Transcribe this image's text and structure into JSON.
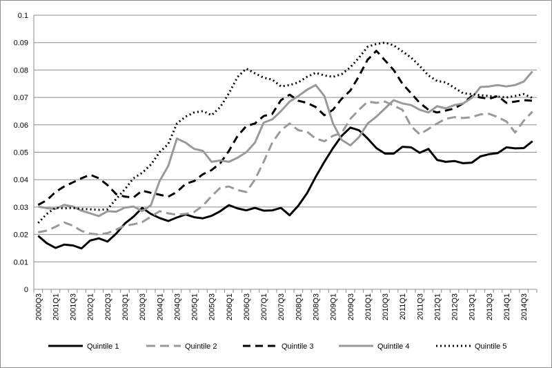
{
  "chart_data": {
    "type": "line",
    "title": "",
    "xlabel": "",
    "ylabel": "",
    "ylim": [
      0,
      0.1
    ],
    "yticks": [
      "0",
      "0.01",
      "0.02",
      "0.03",
      "0.04",
      "0.05",
      "0.06",
      "0.07",
      "0.08",
      "0.09",
      "0.1"
    ],
    "grid": "horizontal",
    "legend_position": "bottom",
    "x": [
      "2000Q3",
      "2000Q4",
      "2001Q1",
      "2001Q2",
      "2001Q3",
      "2001Q4",
      "2002Q1",
      "2002Q2",
      "2002Q3",
      "2002Q4",
      "2003Q1",
      "2003Q2",
      "2003Q3",
      "2003Q4",
      "2004Q1",
      "2004Q2",
      "2004Q3",
      "2004Q4",
      "2005Q1",
      "2005Q2",
      "2005Q3",
      "2005Q4",
      "2006Q1",
      "2006Q2",
      "2006Q3",
      "2006Q4",
      "2007Q1",
      "2007Q2",
      "2007Q3",
      "2007Q4",
      "2008Q1",
      "2008Q2",
      "2008Q3",
      "2008Q4",
      "2009Q1",
      "2009Q2",
      "2009Q3",
      "2009Q4",
      "2010Q1",
      "2010Q2",
      "2010Q3",
      "2010Q4",
      "2011Q1",
      "2011Q2",
      "2011Q3",
      "2011Q4",
      "2012Q1",
      "2012Q2",
      "2012Q3",
      "2012Q4",
      "2013Q1",
      "2013Q2",
      "2013Q3",
      "2013Q4",
      "2014Q1",
      "2014Q2",
      "2014Q3",
      "2014Q4"
    ],
    "x_tick_labels": [
      "2000Q3",
      "2001Q1",
      "2001Q3",
      "2002Q1",
      "2002Q3",
      "2003Q1",
      "2003Q3",
      "2004Q1",
      "2004Q3",
      "2005Q1",
      "2005Q3",
      "2006Q1",
      "2006Q3",
      "2007Q1",
      "2007Q3",
      "2008Q1",
      "2008Q3",
      "2009Q1",
      "2009Q3",
      "2010Q1",
      "2010Q3",
      "2011Q1",
      "2011Q3",
      "2012Q1",
      "2012Q3",
      "2013Q1",
      "2013Q3",
      "2014Q1",
      "2014Q3"
    ],
    "series": [
      {
        "name": "Quintile 1",
        "color": "#000000",
        "dash": "solid",
        "values": [
          0.0195,
          0.0168,
          0.0151,
          0.0163,
          0.016,
          0.0149,
          0.0178,
          0.0186,
          0.0174,
          0.0203,
          0.024,
          0.0265,
          0.0297,
          0.0275,
          0.026,
          0.0249,
          0.0262,
          0.0273,
          0.0263,
          0.0259,
          0.0268,
          0.0285,
          0.0307,
          0.0295,
          0.0288,
          0.0297,
          0.0287,
          0.0288,
          0.0297,
          0.027,
          0.0305,
          0.035,
          0.041,
          0.0465,
          0.0515,
          0.056,
          0.059,
          0.058,
          0.055,
          0.0515,
          0.0495,
          0.0495,
          0.052,
          0.0518,
          0.0498,
          0.0512,
          0.0472,
          0.0465,
          0.0468,
          0.046,
          0.0462,
          0.0485,
          0.0493,
          0.0497,
          0.0518,
          0.0514,
          0.0515,
          0.054
        ]
      },
      {
        "name": "Quintile 2",
        "color": "#999999",
        "dash": "long-dash",
        "values": [
          0.0208,
          0.0214,
          0.0228,
          0.0244,
          0.0232,
          0.0213,
          0.0203,
          0.02,
          0.0205,
          0.0218,
          0.0232,
          0.0237,
          0.0245,
          0.0265,
          0.0285,
          0.0277,
          0.0272,
          0.0275,
          0.0282,
          0.0305,
          0.034,
          0.037,
          0.0375,
          0.0362,
          0.0355,
          0.04,
          0.0465,
          0.0535,
          0.058,
          0.0605,
          0.058,
          0.0575,
          0.055,
          0.054,
          0.056,
          0.057,
          0.0622,
          0.0655,
          0.0685,
          0.068,
          0.0685,
          0.067,
          0.0655,
          0.0595,
          0.0565,
          0.0585,
          0.0605,
          0.0622,
          0.0628,
          0.0625,
          0.0628,
          0.0638,
          0.064,
          0.0628,
          0.0612,
          0.0572,
          0.0615,
          0.0648
        ]
      },
      {
        "name": "Quintile 3",
        "color": "#000000",
        "dash": "dash",
        "values": [
          0.0308,
          0.0325,
          0.0355,
          0.0375,
          0.039,
          0.0405,
          0.0418,
          0.0405,
          0.038,
          0.0347,
          0.0338,
          0.0335,
          0.036,
          0.0352,
          0.0345,
          0.0338,
          0.0355,
          0.0385,
          0.0395,
          0.042,
          0.0435,
          0.046,
          0.0505,
          0.056,
          0.0595,
          0.0605,
          0.0632,
          0.064,
          0.069,
          0.071,
          0.0688,
          0.068,
          0.0665,
          0.0635,
          0.0655,
          0.0695,
          0.0725,
          0.0778,
          0.0838,
          0.087,
          0.0835,
          0.08,
          0.075,
          0.0715,
          0.068,
          0.0655,
          0.0645,
          0.0652,
          0.066,
          0.0678,
          0.0705,
          0.07,
          0.0695,
          0.0705,
          0.068,
          0.0685,
          0.069,
          0.0688
        ]
      },
      {
        "name": "Quintile 4",
        "color": "#999999",
        "dash": "solid",
        "values": [
          0.0302,
          0.0296,
          0.0293,
          0.0308,
          0.0302,
          0.0287,
          0.0277,
          0.0267,
          0.0285,
          0.0283,
          0.0298,
          0.0302,
          0.0285,
          0.0307,
          0.0395,
          0.045,
          0.055,
          0.0535,
          0.0512,
          0.0505,
          0.0465,
          0.047,
          0.0465,
          0.048,
          0.05,
          0.0535,
          0.0608,
          0.062,
          0.065,
          0.0685,
          0.0705,
          0.0728,
          0.0745,
          0.0705,
          0.0605,
          0.0545,
          0.0525,
          0.0555,
          0.0605,
          0.063,
          0.066,
          0.069,
          0.0678,
          0.0672,
          0.0655,
          0.0645,
          0.0668,
          0.066,
          0.0672,
          0.0678,
          0.0698,
          0.0738,
          0.074,
          0.0745,
          0.074,
          0.0745,
          0.0758,
          0.0795
        ]
      },
      {
        "name": "Quintile 5",
        "color": "#000000",
        "dash": "dot",
        "values": [
          0.0242,
          0.0275,
          0.0298,
          0.0295,
          0.0297,
          0.0293,
          0.0292,
          0.029,
          0.0292,
          0.033,
          0.0365,
          0.0405,
          0.0425,
          0.0455,
          0.05,
          0.053,
          0.0605,
          0.063,
          0.0645,
          0.065,
          0.0635,
          0.0665,
          0.0715,
          0.0775,
          0.0805,
          0.0788,
          0.0772,
          0.0765,
          0.074,
          0.0745,
          0.0755,
          0.0775,
          0.079,
          0.078,
          0.0775,
          0.0785,
          0.081,
          0.0845,
          0.0885,
          0.0895,
          0.09,
          0.089,
          0.0868,
          0.0845,
          0.0815,
          0.078,
          0.076,
          0.0755,
          0.0735,
          0.0715,
          0.0712,
          0.0708,
          0.0705,
          0.0703,
          0.07,
          0.0705,
          0.0712,
          0.0698
        ]
      }
    ]
  }
}
